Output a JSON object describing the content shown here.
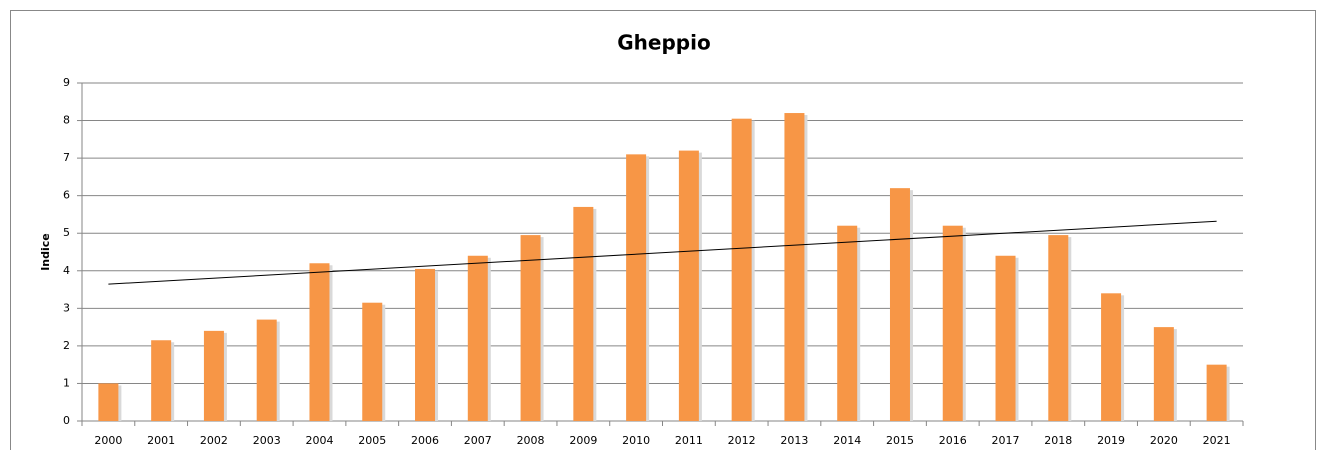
{
  "chart_data": {
    "type": "bar",
    "title": "Gheppio",
    "y_label": "Indice",
    "categories": [
      "2000",
      "2001",
      "2002",
      "2003",
      "2004",
      "2005",
      "2006",
      "2007",
      "2008",
      "2009",
      "2010",
      "2011",
      "2012",
      "2013",
      "2014",
      "2015",
      "2016",
      "2017",
      "2018",
      "2019",
      "2020",
      "2021"
    ],
    "values": [
      1.0,
      2.15,
      2.4,
      2.7,
      4.2,
      3.15,
      4.05,
      4.4,
      4.95,
      5.7,
      7.1,
      7.2,
      8.05,
      8.2,
      5.2,
      6.2,
      5.2,
      4.4,
      4.95,
      3.4,
      2.5,
      1.5
    ],
    "color": "#f79646",
    "trendline": "linear",
    "ylim": [
      0,
      9
    ],
    "yticks": [
      0,
      1,
      2,
      3,
      4,
      5,
      6,
      7,
      8,
      9
    ],
    "grid": true
  }
}
